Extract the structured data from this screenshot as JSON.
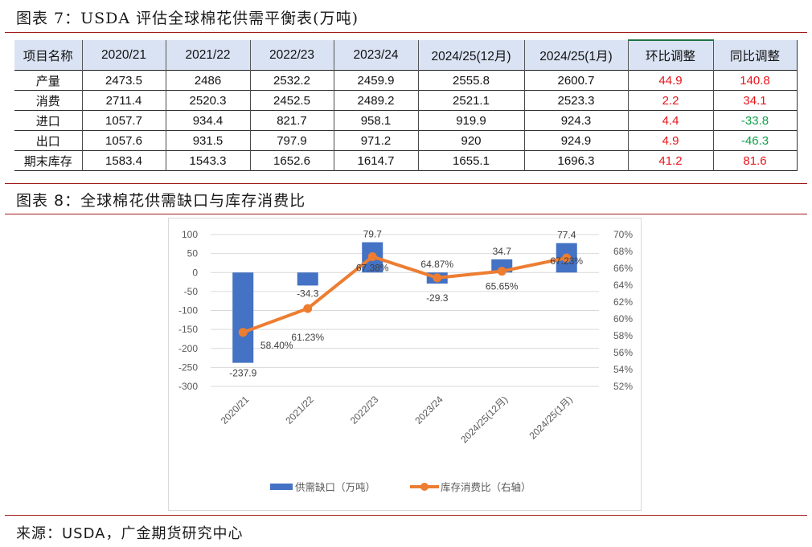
{
  "figure7": {
    "title": "图表 7：USDA 评估全球棉花供需平衡表(万吨)",
    "table": {
      "headers": [
        "项目名称",
        "2020/21",
        "2021/22",
        "2022/23",
        "2023/24",
        "2024/25(12月)",
        "2024/25(1月)",
        "环比调整",
        "同比调整"
      ],
      "rows": [
        {
          "label": "产量",
          "values": [
            "2473.5",
            "2486",
            "2532.2",
            "2459.9",
            "2555.8",
            "2600.7"
          ],
          "mom": "44.9",
          "yoy": "140.8"
        },
        {
          "label": "消费",
          "values": [
            "2711.4",
            "2520.3",
            "2452.5",
            "2489.2",
            "2521.1",
            "2523.3"
          ],
          "mom": "2.2",
          "yoy": "34.1"
        },
        {
          "label": "进口",
          "values": [
            "1057.7",
            "934.4",
            "821.7",
            "958.1",
            "919.9",
            "924.3"
          ],
          "mom": "4.4",
          "yoy": "-33.8"
        },
        {
          "label": "出口",
          "values": [
            "1057.6",
            "931.5",
            "797.9",
            "971.2",
            "920",
            "924.9"
          ],
          "mom": "4.9",
          "yoy": "-46.3"
        },
        {
          "label": "期末库存",
          "values": [
            "1583.4",
            "1543.3",
            "1652.6",
            "1614.7",
            "1655.1",
            "1696.3"
          ],
          "mom": "41.2",
          "yoy": "81.6"
        }
      ]
    }
  },
  "figure8": {
    "title": "图表 8：全球棉花供需缺口与库存消费比"
  },
  "colors": {
    "rule": "#a11a1a",
    "header_bg": "#dae3f3",
    "positive": "#e8141b",
    "negative": "#11a04a",
    "bar": "#4472c4",
    "line": "#ed7d31"
  },
  "chart_data": {
    "type": "bar+line",
    "title": "全球棉花供需缺口与库存消费比",
    "categories": [
      "2020/21",
      "2021/22",
      "2022/23",
      "2023/24",
      "2024/25(12月)",
      "2024/25(1月)"
    ],
    "series": [
      {
        "name": "供需缺口（万吨）",
        "type": "bar",
        "axis": "left",
        "values": [
          -237.9,
          -34.3,
          79.7,
          -29.3,
          34.7,
          77.4
        ],
        "labels": [
          "-237.9",
          "-34.3",
          "79.7",
          "-29.3",
          "34.7",
          "77.4"
        ]
      },
      {
        "name": "库存消费比（右轴）",
        "type": "line",
        "axis": "right",
        "values": [
          58.4,
          61.23,
          67.38,
          64.87,
          65.65,
          67.23
        ],
        "labels": [
          "58.40%",
          "61.23%",
          "67.38%",
          "64.87%",
          "65.65%",
          "67.23%"
        ]
      }
    ],
    "left_axis": {
      "ylim": [
        -300,
        100
      ],
      "ticks": [
        "100",
        "50",
        "0",
        "-50",
        "-100",
        "-150",
        "-200",
        "-250",
        "-300"
      ]
    },
    "right_axis": {
      "ylim": [
        52,
        70
      ],
      "ticks": [
        "70%",
        "68%",
        "66%",
        "64%",
        "62%",
        "60%",
        "58%",
        "56%",
        "54%",
        "52%"
      ]
    },
    "grid": true,
    "legend_position": "bottom",
    "legend": [
      "供需缺口（万吨）",
      "库存消费比（右轴）"
    ]
  },
  "source": "来源：USDA，广金期货研究中心"
}
